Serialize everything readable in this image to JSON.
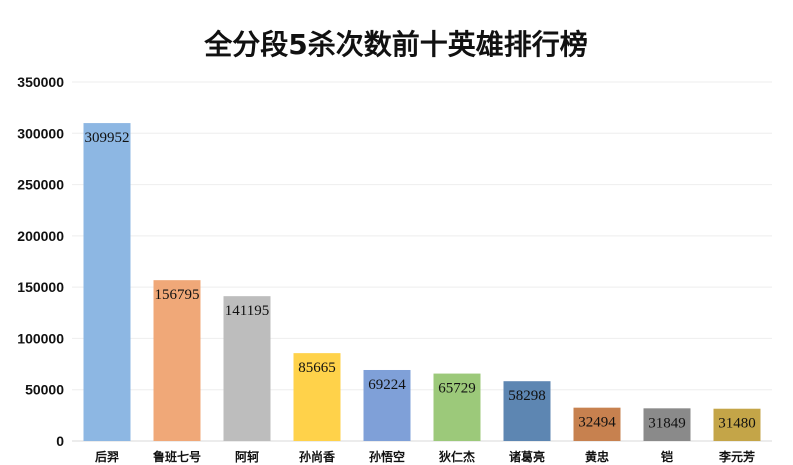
{
  "chart_data": {
    "type": "bar",
    "title": "全分段5杀次数前十英雄排行榜",
    "xlabel": "",
    "ylabel": "",
    "categories": [
      "后羿",
      "鲁班七号",
      "阿轲",
      "孙尚香",
      "孙悟空",
      "狄仁杰",
      "诸葛亮",
      "黄忠",
      "铠",
      "李元芳"
    ],
    "values": [
      309952,
      156795,
      141195,
      85665,
      69224,
      65729,
      58298,
      32494,
      31849,
      31480
    ],
    "colors": [
      "#8db7e3",
      "#f0a878",
      "#bdbdbd",
      "#ffd24a",
      "#7fa0d8",
      "#9cc97a",
      "#5d86b2",
      "#c7814f",
      "#8a8a8a",
      "#c4a548"
    ],
    "ylim": [
      0,
      350000
    ],
    "yticks": [
      0,
      50000,
      100000,
      150000,
      200000,
      250000,
      300000,
      350000
    ],
    "yticklabels": [
      "0",
      "50000",
      "100000",
      "150000",
      "200000",
      "250000",
      "300000",
      "350000"
    ],
    "grid": true,
    "legend": "none"
  }
}
